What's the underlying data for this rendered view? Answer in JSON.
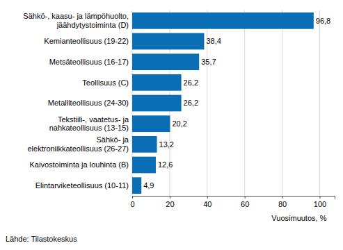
{
  "chart_data": {
    "type": "bar",
    "orientation": "horizontal",
    "categories": [
      "Sähkö-, kaasu- ja lämpöhuolto,\njäähdytystoiminta (D)",
      "Kemianteollisuus (19-22)",
      "Metsäteollisuus (16-17)",
      "Teollisuus (C)",
      "Metalliteollisuus (24-30)",
      "Tekstiili-, vaatetus- ja\nnahkateollisuus (13-15)",
      "Sähkö- ja\nelektroniikkateollisuus (26-27)",
      "Kaivostoiminta ja louhinta (B)",
      "Elintarviketeollisuus (10-11)"
    ],
    "values": [
      96.8,
      38.4,
      35.7,
      26.2,
      26.2,
      20.2,
      13.2,
      12.6,
      4.9
    ],
    "value_labels": [
      "96,8",
      "38,4",
      "35,7",
      "26,2",
      "26,2",
      "20,2",
      "13,2",
      "12,6",
      "4,9"
    ],
    "data_labels": true,
    "color": "#0a6eb4",
    "xlabel": "Vuosimuutos, %",
    "xlim": [
      0,
      108
    ],
    "xticks": [
      0,
      20,
      40,
      60,
      80,
      100
    ],
    "grid": true,
    "source": "Lähde: Tilastokeskus"
  }
}
